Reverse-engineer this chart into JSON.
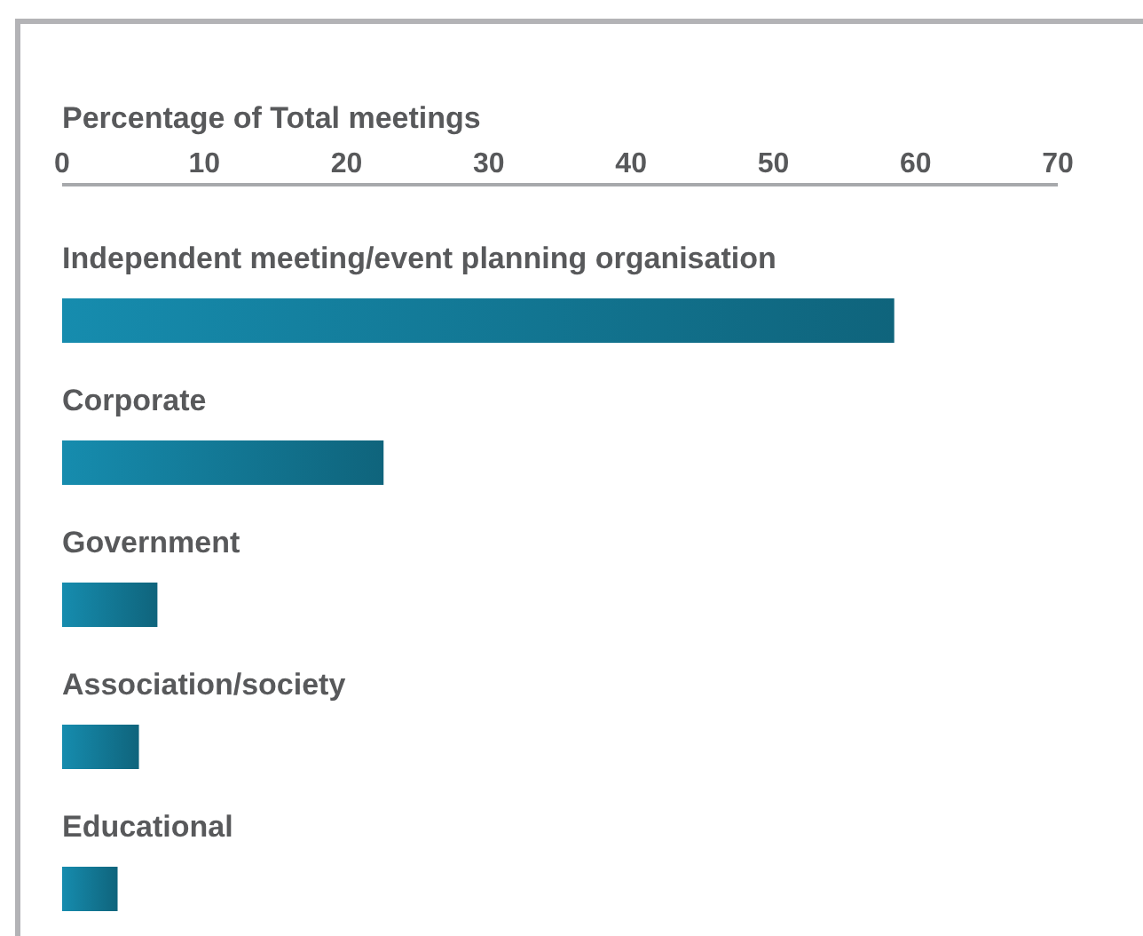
{
  "chart_data": {
    "type": "bar",
    "orientation": "horizontal",
    "xlabel": "Percentage of Total meetings",
    "categories": [
      "Independent meeting/event planning organisation",
      "Corporate",
      "Government",
      "Association/society",
      "Educational"
    ],
    "values": [
      58.5,
      22.6,
      6.7,
      5.4,
      3.9
    ],
    "color": "#137c9a",
    "xlim": [
      0,
      70
    ],
    "xticks": [
      0,
      10,
      20,
      30,
      40,
      50,
      60,
      70
    ],
    "grid": false
  }
}
